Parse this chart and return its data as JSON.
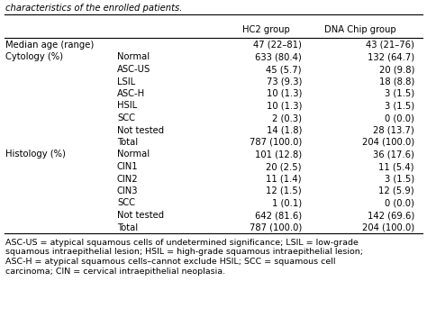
{
  "title_text": "characteristics of the enrolled patients.",
  "col_headers": [
    "HC2 group",
    "DNA Chip group"
  ],
  "rows": [
    [
      "Median age (range)",
      "",
      "47 (22–81)",
      "43 (21–76)"
    ],
    [
      "Cytology (%)",
      "Normal",
      "633 (80.4)",
      "132 (64.7)"
    ],
    [
      "",
      "ASC-US",
      "45 (5.7)",
      "20 (9.8)"
    ],
    [
      "",
      "LSIL",
      "73 (9.3)",
      "18 (8.8)"
    ],
    [
      "",
      "ASC-H",
      "10 (1.3)",
      "3 (1.5)"
    ],
    [
      "",
      "HSIL",
      "10 (1.3)",
      "3 (1.5)"
    ],
    [
      "",
      "SCC",
      "2 (0.3)",
      "0 (0.0)"
    ],
    [
      "",
      "Not tested",
      "14 (1.8)",
      "28 (13.7)"
    ],
    [
      "",
      "Total",
      "787 (100.0)",
      "204 (100.0)"
    ],
    [
      "Histology (%)",
      "Normal",
      "101 (12.8)",
      "36 (17.6)"
    ],
    [
      "",
      "CIN1",
      "20 (2.5)",
      "11 (5.4)"
    ],
    [
      "",
      "CIN2",
      "11 (1.4)",
      "3 (1.5)"
    ],
    [
      "",
      "CIN3",
      "12 (1.5)",
      "12 (5.9)"
    ],
    [
      "",
      "SCC",
      "1 (0.1)",
      "0 (0.0)"
    ],
    [
      "",
      "Not tested",
      "642 (81.6)",
      "142 (69.6)"
    ],
    [
      "",
      "Total",
      "787 (100.0)",
      "204 (100.0)"
    ]
  ],
  "footnote_lines": [
    "ASC-US = atypical squamous cells of undetermined significance; LSIL = low-grade",
    "squamous intraepithelial lesion; HSIL = high-grade squamous intraepithelial lesion;",
    "ASC-H = atypical squamous cells–cannot exclude HSIL; SCC = squamous cell",
    "carcinoma; CIN = cervical intraepithelial neoplasia."
  ],
  "bg_color": "#ffffff",
  "text_color": "#000000",
  "font_size": 7.2,
  "footnote_font_size": 6.8
}
